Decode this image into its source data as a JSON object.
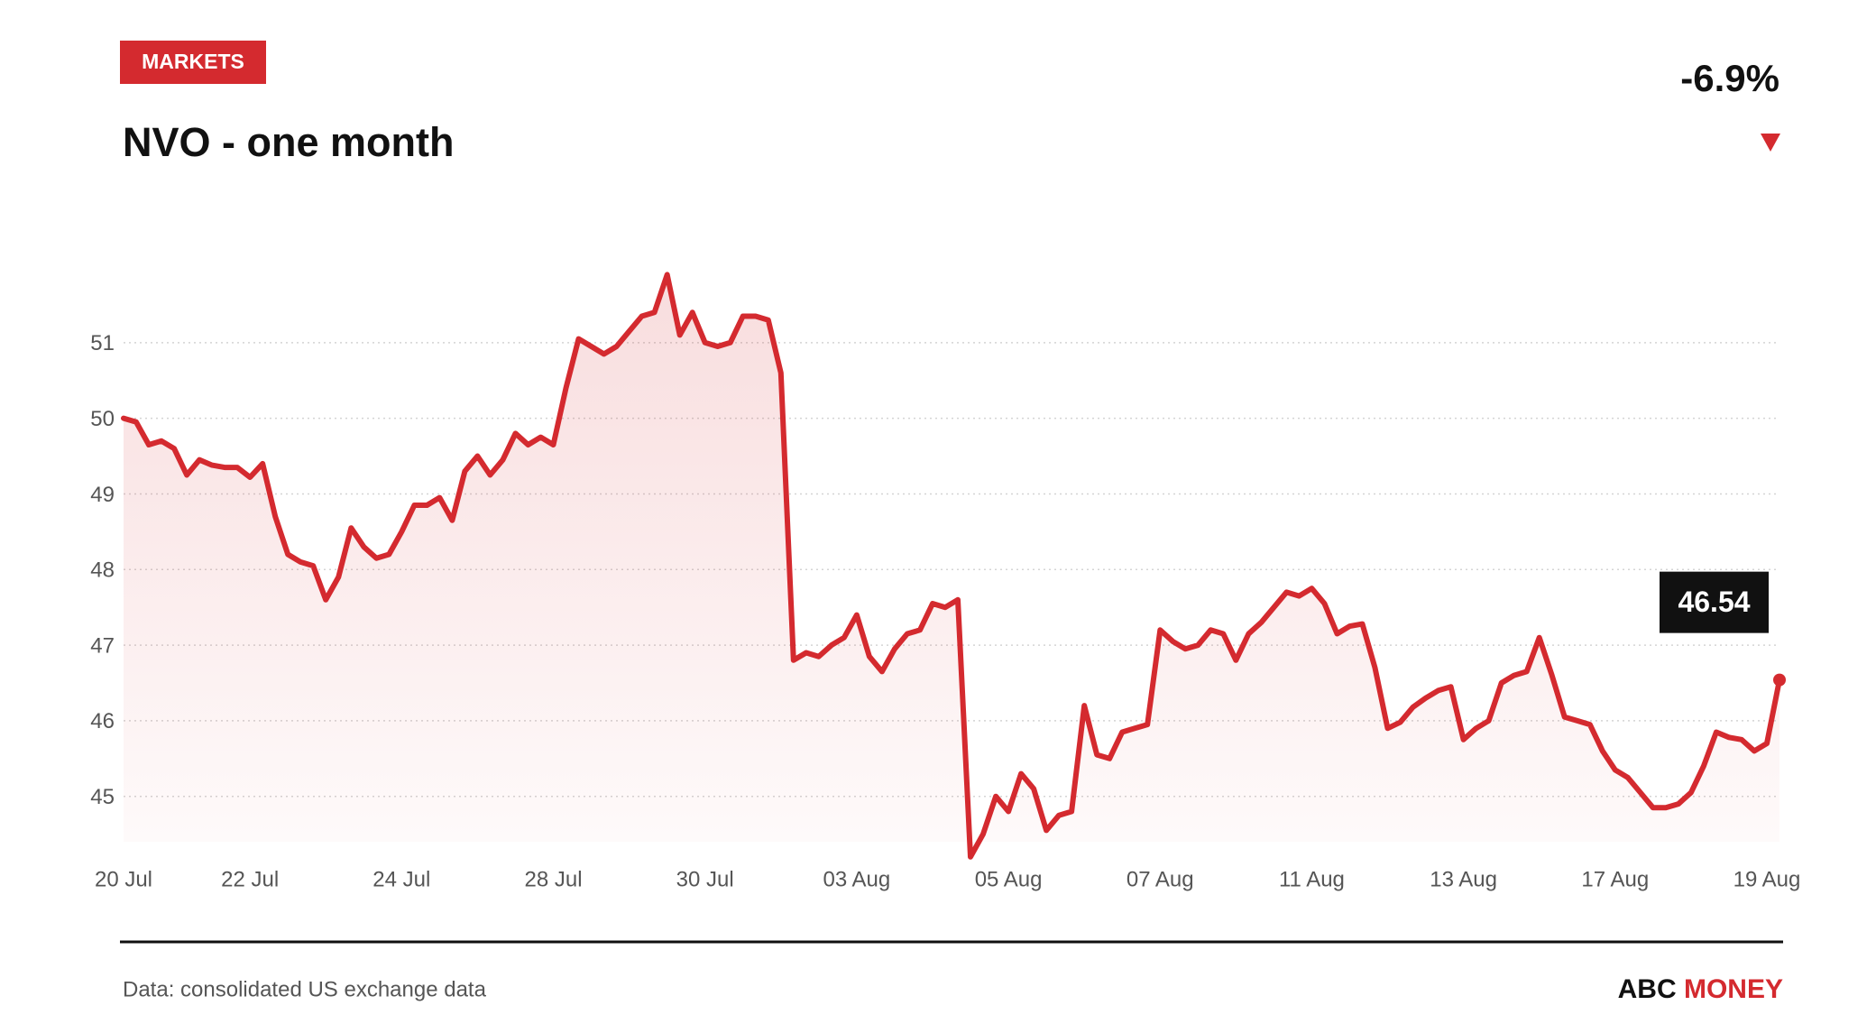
{
  "tag": "MARKETS",
  "change": "-6.9%",
  "source": "Data: consolidated US exchange data",
  "brand": {
    "first": "ABC",
    "second": "MONEY"
  },
  "chart_data": {
    "type": "line",
    "title": "NVO - one month",
    "color": "#d42a2f",
    "grid": true,
    "ylim": [
      44.4,
      52
    ],
    "yticks": [
      45,
      46,
      47,
      48,
      49,
      50,
      51
    ],
    "last_value": 46.54,
    "categories": [
      "20 Jul",
      null,
      null,
      null,
      null,
      null,
      null,
      null,
      null,
      null,
      "22 Jul",
      null,
      null,
      null,
      null,
      null,
      null,
      null,
      null,
      null,
      null,
      null,
      "24 Jul",
      null,
      null,
      null,
      null,
      null,
      null,
      null,
      null,
      null,
      null,
      null,
      "28 Jul",
      null,
      null,
      null,
      null,
      null,
      null,
      null,
      null,
      null,
      null,
      null,
      "30 Jul",
      null,
      null,
      null,
      null,
      null,
      null,
      null,
      null,
      null,
      null,
      null,
      "03 Aug",
      null,
      null,
      null,
      null,
      null,
      null,
      null,
      null,
      null,
      null,
      null,
      "05 Aug",
      null,
      null,
      null,
      null,
      null,
      null,
      null,
      null,
      null,
      null,
      null,
      "07 Aug",
      null,
      null,
      null,
      null,
      null,
      null,
      null,
      null,
      null,
      null,
      null,
      "11 Aug",
      null,
      null,
      null,
      null,
      null,
      null,
      null,
      null,
      null,
      null,
      null,
      "13 Aug",
      null,
      null,
      null,
      null,
      null,
      null,
      null,
      null,
      null,
      null,
      null,
      "17 Aug",
      null,
      null,
      null,
      null,
      null,
      null,
      null,
      null,
      null,
      null,
      null,
      "19 Aug",
      null
    ],
    "values": [
      50.0,
      49.95,
      49.65,
      49.7,
      49.6,
      49.25,
      49.45,
      49.38,
      49.35,
      49.35,
      49.22,
      49.4,
      48.7,
      48.2,
      48.1,
      48.05,
      47.6,
      47.9,
      48.55,
      48.3,
      48.15,
      48.2,
      48.5,
      48.85,
      48.85,
      48.95,
      48.65,
      49.3,
      49.5,
      49.25,
      49.45,
      49.8,
      49.65,
      49.75,
      49.65,
      50.4,
      51.05,
      50.95,
      50.85,
      50.95,
      51.15,
      51.35,
      51.4,
      51.9,
      51.1,
      51.4,
      51.0,
      50.95,
      51.0,
      51.35,
      51.35,
      51.3,
      50.6,
      46.8,
      46.9,
      46.85,
      47.0,
      47.1,
      47.4,
      46.85,
      46.65,
      46.95,
      47.15,
      47.2,
      47.55,
      47.5,
      47.6,
      44.2,
      44.5,
      45.0,
      44.8,
      45.3,
      45.1,
      44.55,
      44.75,
      44.8,
      46.2,
      45.55,
      45.5,
      45.85,
      45.9,
      45.95,
      47.2,
      47.05,
      46.95,
      47.0,
      47.2,
      47.15,
      46.8,
      47.15,
      47.3,
      47.5,
      47.7,
      47.65,
      47.75,
      47.55,
      47.15,
      47.25,
      47.28,
      46.7,
      45.9,
      45.98,
      46.18,
      46.3,
      46.4,
      46.45,
      45.75,
      45.9,
      46.0,
      46.5,
      46.6,
      46.65,
      47.1,
      46.6,
      46.05,
      46.0,
      45.95,
      45.6,
      45.35,
      45.25,
      45.05,
      44.85,
      44.85,
      44.9,
      45.05,
      45.4,
      45.85,
      45.78,
      45.75,
      45.6,
      45.7,
      46.54
    ]
  }
}
